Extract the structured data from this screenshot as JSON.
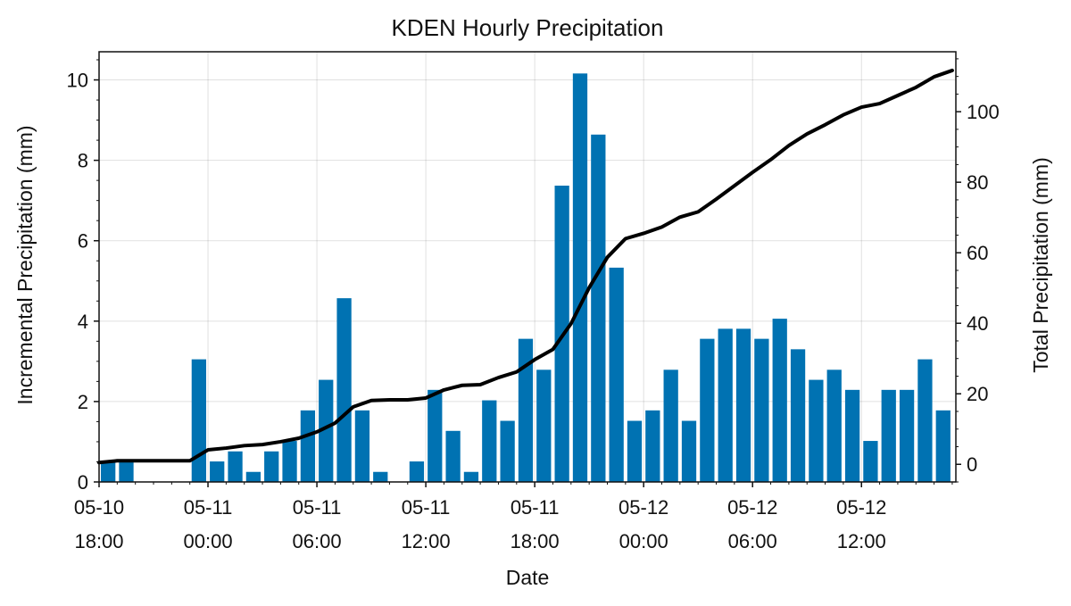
{
  "chart_data": {
    "type": "bar",
    "title": "KDEN Hourly Precipitation",
    "xlabel": "Date",
    "ylabel": "Incremental Precipitation (mm)",
    "y2label": "Total Precipitation (mm)",
    "ylim": [
      0,
      10.7
    ],
    "y2lim": [
      -5,
      117
    ],
    "yticks": [
      0,
      2,
      4,
      6,
      8,
      10
    ],
    "y2ticks": [
      0,
      20,
      40,
      60,
      80,
      100
    ],
    "grid": true,
    "bar_color": "#0072b2",
    "line_color": "#000000",
    "xticks": [
      {
        "hour": 0,
        "line1": "05-10",
        "line2": "18:00"
      },
      {
        "hour": 6,
        "line1": "05-11",
        "line2": "00:00"
      },
      {
        "hour": 12,
        "line1": "05-11",
        "line2": "06:00"
      },
      {
        "hour": 18,
        "line1": "05-11",
        "line2": "12:00"
      },
      {
        "hour": 24,
        "line1": "05-11",
        "line2": "18:00"
      },
      {
        "hour": 30,
        "line1": "05-12",
        "line2": "00:00"
      },
      {
        "hour": 36,
        "line1": "05-12",
        "line2": "06:00"
      },
      {
        "hour": 42,
        "line1": "05-12",
        "line2": "12:00"
      }
    ],
    "series": [
      {
        "type": "bar",
        "axis": "left",
        "x": [
          0,
          1,
          2,
          3,
          4,
          5,
          6,
          7,
          8,
          9,
          10,
          11,
          12,
          13,
          14,
          15,
          16,
          17,
          18,
          19,
          20,
          21,
          22,
          23,
          24,
          25,
          26,
          27,
          28,
          29,
          30,
          31,
          32,
          33,
          34,
          35,
          36,
          37,
          38,
          39,
          40,
          41,
          42,
          43,
          44,
          45,
          46
        ],
        "values": [
          0.51,
          0.51,
          0,
          0,
          0,
          3.05,
          0.51,
          0.76,
          0.25,
          0.76,
          1.02,
          1.78,
          2.54,
          4.57,
          1.78,
          0.25,
          0,
          0.51,
          2.29,
          1.27,
          0.25,
          2.03,
          1.52,
          3.56,
          2.79,
          7.37,
          10.16,
          8.64,
          5.33,
          1.52,
          1.78,
          2.79,
          1.52,
          3.56,
          3.81,
          3.81,
          3.56,
          4.06,
          3.3,
          2.54,
          2.79,
          2.29,
          1.02,
          2.29,
          2.29,
          3.05,
          1.78
        ]
      },
      {
        "type": "line",
        "axis": "right",
        "x": [
          0,
          1,
          2,
          3,
          4,
          5,
          6,
          7,
          8,
          9,
          10,
          11,
          12,
          13,
          14,
          15,
          16,
          17,
          18,
          19,
          20,
          21,
          22,
          23,
          24,
          25,
          26,
          27,
          28,
          29,
          30,
          31,
          32,
          33,
          34,
          35,
          36,
          37,
          38,
          39,
          40,
          41,
          42,
          43,
          44,
          45,
          46,
          47
        ],
        "values": [
          0.5,
          1.0,
          1.0,
          1.0,
          1.0,
          1.0,
          4.1,
          4.6,
          5.3,
          5.6,
          6.4,
          7.4,
          9.2,
          11.7,
          16.3,
          18.1,
          18.3,
          18.3,
          18.8,
          21.1,
          22.4,
          22.6,
          24.6,
          26.2,
          29.7,
          32.6,
          39.9,
          50.1,
          58.7,
          64.0,
          65.5,
          67.3,
          70.1,
          71.6,
          75.2,
          79.0,
          82.8,
          86.4,
          90.4,
          93.7,
          96.3,
          99.1,
          101.3,
          102.3,
          104.6,
          106.9,
          109.9,
          111.7
        ]
      }
    ]
  }
}
